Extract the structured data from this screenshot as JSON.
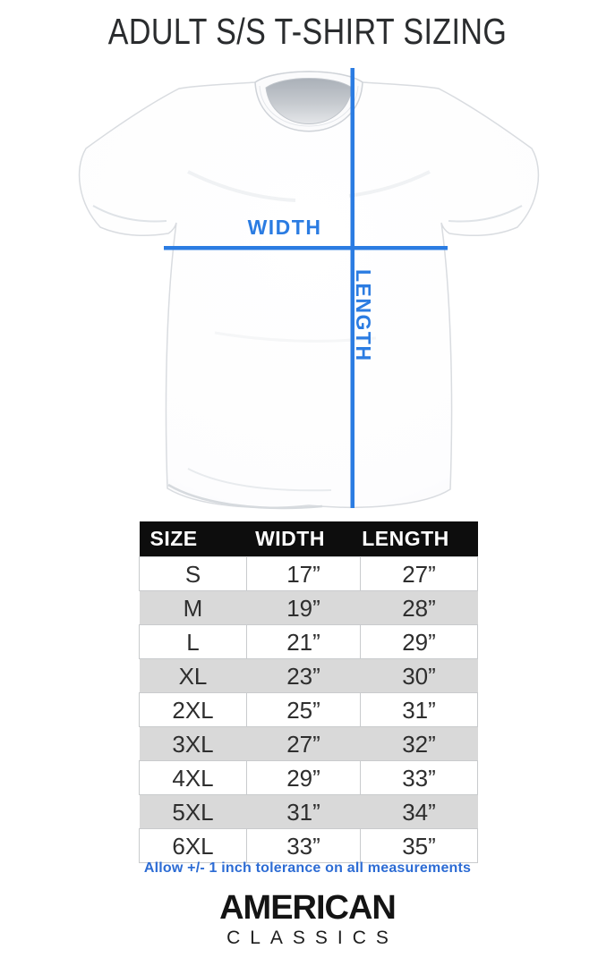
{
  "page_title": "ADULT S/S T-SHIRT SIZING",
  "diagram": {
    "width_label": "WIDTH",
    "length_label": "LENGTH"
  },
  "chart_data": {
    "type": "table",
    "title": "ADULT S/S T-SHIRT SIZING",
    "columns": [
      "SIZE",
      "WIDTH",
      "LENGTH"
    ],
    "rows": [
      {
        "size": "S",
        "width": "17”",
        "length": "27”"
      },
      {
        "size": "M",
        "width": "19”",
        "length": "28”"
      },
      {
        "size": "L",
        "width": "21”",
        "length": "29”"
      },
      {
        "size": "XL",
        "width": "23”",
        "length": "30”"
      },
      {
        "size": "2XL",
        "width": "25”",
        "length": "31”"
      },
      {
        "size": "3XL",
        "width": "27”",
        "length": "32”"
      },
      {
        "size": "4XL",
        "width": "29”",
        "length": "33”"
      },
      {
        "size": "5XL",
        "width": "31”",
        "length": "34”"
      },
      {
        "size": "6XL",
        "width": "33”",
        "length": "35”"
      }
    ]
  },
  "tolerance_note": "Allow +/- 1 inch tolerance on all measurements",
  "brand": {
    "name_top": "AMERICAN",
    "name_bottom": "CLASSICS"
  },
  "colors": {
    "accent_blue": "#2b7ce2",
    "note_blue": "#2d6cd4",
    "table_header_bg": "#0d0d0d",
    "stripe_gray": "#d9d9d9",
    "border_gray": "#c9cbcd",
    "text_dark": "#2e2e2e"
  }
}
